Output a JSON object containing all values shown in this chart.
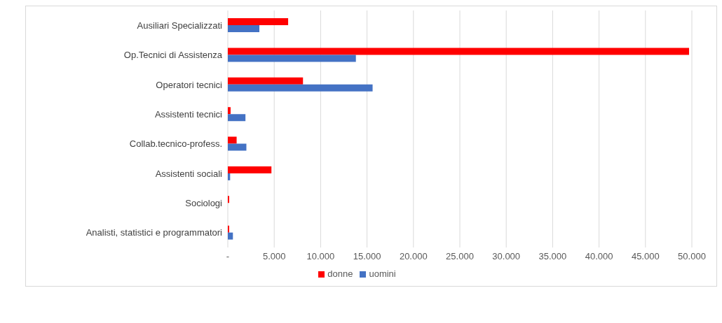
{
  "chart_data": {
    "type": "bar",
    "orientation": "horizontal",
    "categories": [
      "Ausiliari Specializzati",
      "Op.Tecnici di Assistenza",
      "Operatori tecnici",
      "Assistenti tecnici",
      "Collab.tecnico-profess.",
      "Assistenti sociali",
      "Sociologi",
      "Analisti, statistici e programmatori"
    ],
    "series": [
      {
        "name": "donne",
        "color": "#ff0000",
        "values": [
          6500,
          49700,
          8100,
          300,
          950,
          4700,
          150,
          150
        ]
      },
      {
        "name": "uomini",
        "color": "#4472c4",
        "values": [
          3400,
          13800,
          15600,
          1900,
          2000,
          250,
          0,
          550
        ]
      }
    ],
    "xlim": [
      0,
      50000
    ],
    "xticks": [
      {
        "value": 0,
        "label": "-"
      },
      {
        "value": 5000,
        "label": "5.000"
      },
      {
        "value": 10000,
        "label": "10.000"
      },
      {
        "value": 15000,
        "label": "15.000"
      },
      {
        "value": 20000,
        "label": "20.000"
      },
      {
        "value": 25000,
        "label": "25.000"
      },
      {
        "value": 30000,
        "label": "30.000"
      },
      {
        "value": 35000,
        "label": "35.000"
      },
      {
        "value": 40000,
        "label": "40.000"
      },
      {
        "value": 45000,
        "label": "45.000"
      },
      {
        "value": 50000,
        "label": "50.000"
      }
    ],
    "grid": "x",
    "legend": "bottom"
  }
}
